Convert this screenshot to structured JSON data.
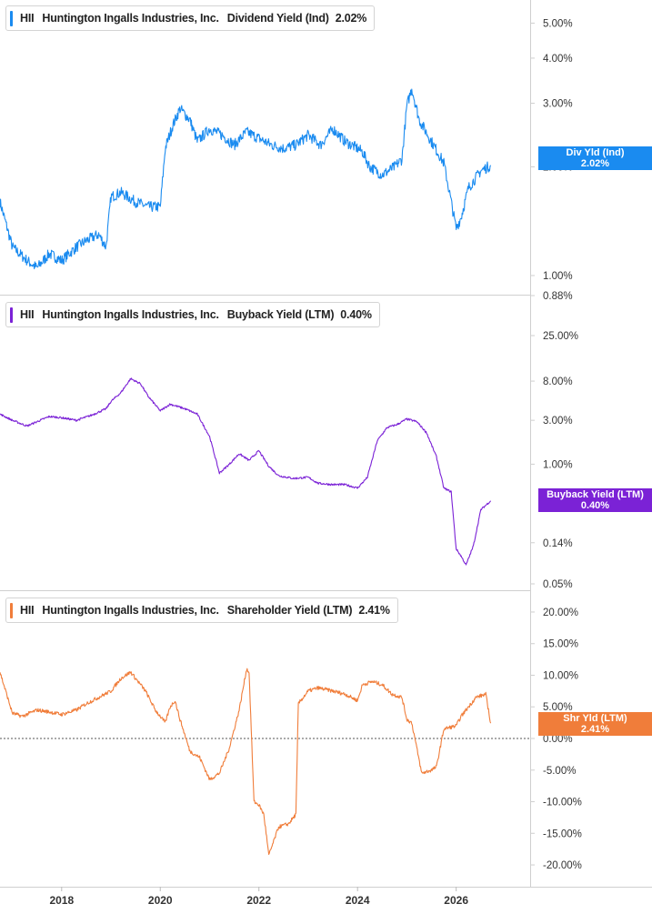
{
  "chart_data": [
    {
      "type": "line",
      "ticker": "HII",
      "company": "Huntington Ingalls Industries, Inc.",
      "metric": "Dividend Yield (Ind)",
      "current_value_label": "2.02%",
      "tag_label": "Div Yld (Ind)",
      "tag_value": "2.02%",
      "color": "#1a8bf0",
      "yscale": "log",
      "ylim": [
        0.88,
        5.5
      ],
      "yticks": [
        "5.00%",
        "4.00%",
        "3.00%",
        "2.00%",
        "1.00%",
        "0.88%"
      ],
      "ytick_values": [
        5.0,
        4.0,
        3.0,
        2.0,
        1.0,
        0.88
      ],
      "x": [
        2016.75,
        2017.0,
        2017.3,
        2017.5,
        2017.75,
        2018.0,
        2018.3,
        2018.5,
        2018.75,
        2018.9,
        2019.0,
        2019.2,
        2019.5,
        2019.75,
        2020.0,
        2020.1,
        2020.25,
        2020.4,
        2020.6,
        2020.75,
        2021.0,
        2021.25,
        2021.5,
        2021.75,
        2022.0,
        2022.25,
        2022.5,
        2022.75,
        2023.0,
        2023.25,
        2023.5,
        2023.75,
        2024.0,
        2024.1,
        2024.25,
        2024.5,
        2024.75,
        2024.9,
        2025.0,
        2025.1,
        2025.25,
        2025.5,
        2025.75,
        2025.9,
        2026.0,
        2026.1,
        2026.25,
        2026.5,
        2026.7
      ],
      "values": [
        1.6,
        1.2,
        1.1,
        1.05,
        1.15,
        1.1,
        1.2,
        1.25,
        1.3,
        1.2,
        1.65,
        1.7,
        1.6,
        1.55,
        1.55,
        2.25,
        2.6,
        2.9,
        2.7,
        2.35,
        2.55,
        2.45,
        2.3,
        2.5,
        2.4,
        2.3,
        2.25,
        2.3,
        2.45,
        2.3,
        2.55,
        2.35,
        2.25,
        2.2,
        2.0,
        1.9,
        2.0,
        2.1,
        2.95,
        3.3,
        2.7,
        2.35,
        2.05,
        1.6,
        1.35,
        1.45,
        1.75,
        1.95,
        2.02
      ]
    },
    {
      "type": "line",
      "ticker": "HII",
      "company": "Huntington Ingalls Industries, Inc.",
      "metric": "Buyback Yield (LTM)",
      "current_value_label": "0.40%",
      "tag_label": "Buyback Yield (LTM)",
      "tag_value": "0.40%",
      "color": "#7b22d6",
      "yscale": "log",
      "ylim": [
        0.05,
        30
      ],
      "yticks": [
        "25.00%",
        "8.00%",
        "3.00%",
        "1.00%",
        "0.14%",
        "0.05%"
      ],
      "ytick_values": [
        25.0,
        8.0,
        3.0,
        1.0,
        0.14,
        0.05
      ],
      "x": [
        2016.75,
        2017.0,
        2017.3,
        2017.5,
        2017.75,
        2018.0,
        2018.3,
        2018.6,
        2018.9,
        2019.0,
        2019.2,
        2019.4,
        2019.6,
        2019.75,
        2020.0,
        2020.2,
        2020.5,
        2020.75,
        2021.0,
        2021.2,
        2021.4,
        2021.6,
        2021.8,
        2022.0,
        2022.2,
        2022.4,
        2022.7,
        2023.0,
        2023.2,
        2023.5,
        2023.75,
        2024.0,
        2024.2,
        2024.4,
        2024.6,
        2024.8,
        2025.0,
        2025.2,
        2025.4,
        2025.6,
        2025.75,
        2025.9,
        2026.0,
        2026.1,
        2026.2,
        2026.35,
        2026.5,
        2026.7
      ],
      "values": [
        3.5,
        3.0,
        2.6,
        2.9,
        3.3,
        3.2,
        3.0,
        3.4,
        4.0,
        4.8,
        6.0,
        8.5,
        7.5,
        5.5,
        3.8,
        4.5,
        4.0,
        3.5,
        2.0,
        0.8,
        1.0,
        1.3,
        1.1,
        1.4,
        0.95,
        0.75,
        0.7,
        0.72,
        0.62,
        0.6,
        0.6,
        0.55,
        0.72,
        1.8,
        2.5,
        2.7,
        3.1,
        2.9,
        2.2,
        1.2,
        0.55,
        0.5,
        0.12,
        0.1,
        0.08,
        0.13,
        0.32,
        0.4
      ]
    },
    {
      "type": "line",
      "ticker": "HII",
      "company": "Huntington Ingalls Industries, Inc.",
      "metric": "Shareholder Yield (LTM)",
      "current_value_label": "2.41%",
      "tag_label": "Shr Yld (LTM)",
      "tag_value": "2.41%",
      "color": "#f07d3a",
      "yscale": "linear",
      "ylim": [
        -21,
        21
      ],
      "yticks": [
        "20.00%",
        "15.00%",
        "10.00%",
        "5.00%",
        "0.00%",
        "-5.00%",
        "-10.00%",
        "-15.00%",
        "-20.00%"
      ],
      "ytick_values": [
        20,
        15,
        10,
        5,
        0,
        -5,
        -10,
        -15,
        -20
      ],
      "x": [
        2016.75,
        2017.0,
        2017.2,
        2017.5,
        2017.75,
        2018.0,
        2018.3,
        2018.5,
        2018.75,
        2019.0,
        2019.2,
        2019.4,
        2019.6,
        2019.7,
        2019.9,
        2020.0,
        2020.1,
        2020.2,
        2020.3,
        2020.4,
        2020.6,
        2020.8,
        2021.0,
        2021.2,
        2021.4,
        2021.6,
        2021.75,
        2021.8,
        2021.9,
        2022.0,
        2022.1,
        2022.2,
        2022.4,
        2022.6,
        2022.75,
        2022.8,
        2023.0,
        2023.2,
        2023.5,
        2023.75,
        2024.0,
        2024.1,
        2024.3,
        2024.5,
        2024.7,
        2024.9,
        2025.0,
        2025.1,
        2025.3,
        2025.5,
        2025.6,
        2025.75,
        2026.0,
        2026.1,
        2026.25,
        2026.4,
        2026.6,
        2026.7
      ],
      "values": [
        10.5,
        4.0,
        3.5,
        4.5,
        4.2,
        3.8,
        4.5,
        5.5,
        6.5,
        7.5,
        9.5,
        10.5,
        8.5,
        7.5,
        4.5,
        3.5,
        2.5,
        5.0,
        6.0,
        3.0,
        -2.0,
        -3.0,
        -6.5,
        -5.5,
        -1.5,
        4.5,
        11.0,
        10.5,
        -10.0,
        -10.5,
        -12.0,
        -18.5,
        -14.0,
        -13.5,
        -12.0,
        5.5,
        7.5,
        8.0,
        7.5,
        7.0,
        6.0,
        8.5,
        9.0,
        8.5,
        7.0,
        6.5,
        3.0,
        2.5,
        -5.5,
        -5.0,
        -4.5,
        1.5,
        2.0,
        3.5,
        5.0,
        6.5,
        7.0,
        2.41
      ]
    }
  ],
  "x_axis": {
    "ticks": [
      "2018",
      "2020",
      "2022",
      "2024",
      "2026"
    ],
    "tick_values": [
      2018,
      2020,
      2022,
      2024,
      2026
    ],
    "range": [
      2016.75,
      2027.5
    ]
  }
}
